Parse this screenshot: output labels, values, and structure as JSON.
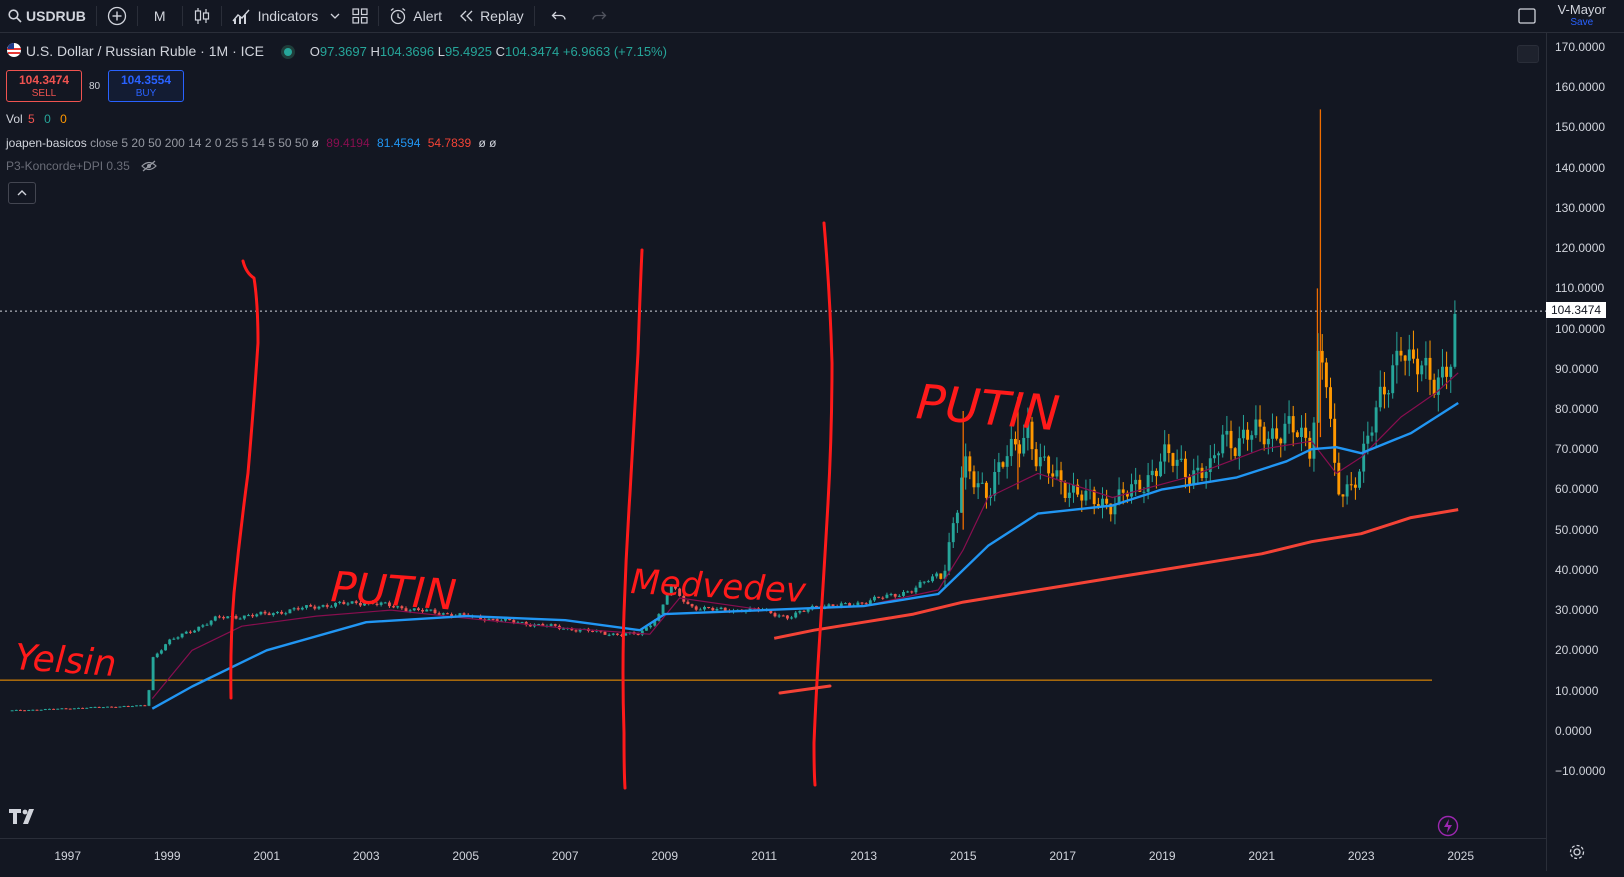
{
  "toolbar": {
    "symbol": "USDRUB",
    "interval": "M",
    "indicators_label": "Indicators",
    "alert_label": "Alert",
    "replay_label": "Replay",
    "layout_name": "V-Mayor",
    "save_label": "Save"
  },
  "legend": {
    "title": "U.S. Dollar / Russian Ruble · 1M · ICE",
    "ohlc": {
      "o_label": "O",
      "o": "97.3697",
      "h_label": "H",
      "h": "104.3696",
      "l_label": "L",
      "l": "95.4925",
      "c_label": "C",
      "c": "104.3474",
      "change": "+6.9663 (+7.15%)"
    },
    "sell_price": "104.3474",
    "sell_label": "SELL",
    "spread": "80",
    "buy_price": "104.3554",
    "buy_label": "BUY",
    "vol_label": "Vol",
    "vol_length": "5",
    "vol_v1": "0",
    "vol_v2": "0",
    "ind1_name": "joapen-basicos",
    "ind1_params": "close 5 20 50 200 14 2 0 25 5 14 5 50 50",
    "ind1_phi": "ø",
    "ind1_v1": "89.4194",
    "ind1_v2": "81.4594",
    "ind1_v3": "54.7839",
    "ind1_tail": "ø  ø",
    "ind2_name": "P3-Koncorde+DPI 0.35"
  },
  "price_axis": {
    "ticks": [
      "170.0000",
      "160.0000",
      "150.0000",
      "140.0000",
      "130.0000",
      "120.0000",
      "110.0000",
      "100.0000",
      "90.0000",
      "80.0000",
      "70.0000",
      "60.0000",
      "50.0000",
      "40.0000",
      "30.0000",
      "20.0000",
      "10.0000",
      "0.0000",
      "−10.0000"
    ],
    "last_price": "104.3474"
  },
  "time_axis": {
    "years": [
      "1997",
      "1999",
      "2001",
      "2003",
      "2005",
      "2007",
      "2009",
      "2011",
      "2013",
      "2015",
      "2017",
      "2019",
      "2021",
      "2023",
      "2025"
    ]
  },
  "annotations": [
    "Yelsin",
    "PUTIN",
    "Medvedev",
    "PUTIN"
  ],
  "colors": {
    "up": "#26a69a",
    "down": "#ef5350",
    "ma_blue": "#2196f3",
    "ma_red": "#f44336",
    "ma_thin": "#880e4f",
    "hline": "#ff9800",
    "drawing": "#ff1a1a",
    "bg": "#131722"
  },
  "chart_data": {
    "type": "candlestick",
    "series_label": "U.S. Dollar / Russian Ruble · 1M · ICE",
    "ylim": [
      -10,
      170
    ],
    "xlim": [
      1995.8,
      2027.8
    ],
    "grid": false,
    "horizontal_line": 12.6,
    "price_line": {
      "years": [
        1995.8,
        1996.5,
        1997.5,
        1998.6,
        1998.7,
        1999.0,
        1999.5,
        2000.0,
        2001.0,
        2002.0,
        2003.0,
        2004.0,
        2005.0,
        2006.0,
        2007.0,
        2008.0,
        2008.5,
        2008.9,
        2009.1,
        2009.5,
        2010.0,
        2011.0,
        2011.5,
        2012.0,
        2012.5,
        2013.0,
        2014.0,
        2014.6,
        2014.9,
        2015.0,
        2015.5,
        2016.0,
        2016.3,
        2016.5,
        2017.0,
        2017.5,
        2018.0,
        2018.5,
        2019.0,
        2019.5,
        2020.0,
        2020.2,
        2020.5,
        2021.0,
        2021.5,
        2022.0,
        2022.15,
        2022.3,
        2022.5,
        2022.8,
        2023.0,
        2023.5,
        2023.8,
        2024.0,
        2024.5,
        2024.8,
        2024.95
      ],
      "values": [
        5.0,
        5.3,
        5.8,
        6.3,
        18,
        22,
        25,
        28,
        29,
        31,
        32,
        30,
        28.5,
        27,
        25.5,
        24,
        24,
        29,
        36,
        31,
        30,
        30,
        28,
        31,
        31,
        32,
        35,
        40,
        56,
        65,
        60,
        70,
        76,
        66,
        62,
        57,
        57,
        60,
        68,
        65,
        64,
        74,
        72,
        74,
        75,
        71,
        96,
        88,
        58,
        61,
        68,
        85,
        98,
        90,
        88,
        92,
        104.3
      ]
    },
    "wicks": [
      {
        "year": 2016.1,
        "low": 60,
        "high": 83
      },
      {
        "year": 2015.0,
        "low": 50,
        "high": 79.5
      },
      {
        "year": 2022.18,
        "low": 73,
        "high": 154.5
      },
      {
        "year": 2022.12,
        "low": 70,
        "high": 110
      }
    ],
    "ma_blue": {
      "years": [
        1998.7,
        1999.5,
        2001.0,
        2003.0,
        2005.0,
        2007.0,
        2008.5,
        2009.0,
        2011.0,
        2013.0,
        2014.5,
        2015.5,
        2016.5,
        2018.0,
        2019.0,
        2020.5,
        2021.5,
        2022.0,
        2022.5,
        2023.0,
        2024.0,
        2024.95
      ],
      "values": [
        5.5,
        11,
        20,
        27,
        28.5,
        27.5,
        25,
        29,
        30,
        31,
        34,
        46,
        54,
        56,
        60,
        63,
        67,
        70,
        70.5,
        69,
        74,
        81.5
      ]
    },
    "ma_red": {
      "years": [
        2011.2,
        2012.0,
        2013.0,
        2014.0,
        2015.0,
        2016.0,
        2017.0,
        2018.0,
        2019.0,
        2020.0,
        2021.0,
        2022.0,
        2023.0,
        2024.0,
        2024.95
      ],
      "values": [
        23,
        25,
        27,
        29,
        32,
        34,
        36,
        38,
        40,
        42,
        44,
        47,
        49,
        53,
        55
      ]
    },
    "ma_thin": {
      "years": [
        1998.7,
        1999.5,
        2000.5,
        2002.0,
        2003.5,
        2005.0,
        2007.0,
        2008.7,
        2009.3,
        2011.0,
        2013.0,
        2014.5,
        2015.0,
        2015.5,
        2016.5,
        2018.0,
        2019.5,
        2021.0,
        2022.0,
        2022.5,
        2023.0,
        2023.8,
        2024.5,
        2024.95
      ],
      "values": [
        8,
        20,
        26,
        28.5,
        30,
        28,
        25.5,
        24,
        33,
        30,
        31,
        35,
        45,
        58,
        64,
        58,
        63,
        70,
        72,
        64,
        68,
        78,
        84,
        89
      ]
    }
  }
}
